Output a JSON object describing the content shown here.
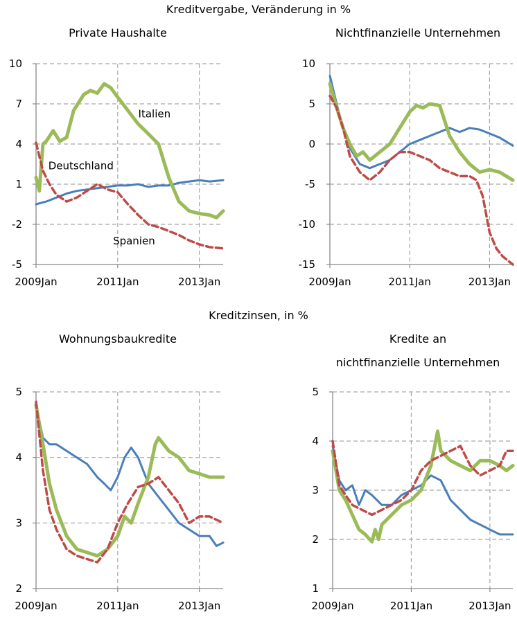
{
  "titles": {
    "top": "Kreditvergabe, Veränderung in %",
    "bottom": "Kreditzinsen, in %"
  },
  "colors": {
    "deutschland": "#4a7ebb",
    "italien": "#9bbb59",
    "spanien": "#be4b48",
    "grid": "#a6a6a6",
    "axis": "#888888"
  },
  "chart_data": [
    {
      "type": "line",
      "title": "Private Haushalte",
      "x_ticks": [
        "2009Jan",
        "2011Jan",
        "2013Jan"
      ],
      "x_range": [
        2009.0,
        2013.583
      ],
      "ylim": [
        -5,
        10
      ],
      "y_ticks": [
        10,
        7,
        4,
        1,
        -2,
        -5
      ],
      "grid": true,
      "annotations": [
        {
          "text": "Italien",
          "series": "Italien"
        },
        {
          "text": "Deutschland",
          "series": "Deutschland"
        },
        {
          "text": "Spanien",
          "series": "Spanien"
        }
      ],
      "series": [
        {
          "name": "Deutschland",
          "style": "solid",
          "x": [
            2009.0,
            2009.25,
            2009.5,
            2009.75,
            2010.0,
            2010.25,
            2010.5,
            2010.75,
            2011.0,
            2011.25,
            2011.5,
            2011.75,
            2012.0,
            2012.25,
            2012.5,
            2012.75,
            2013.0,
            2013.25,
            2013.583
          ],
          "y": [
            -0.5,
            -0.3,
            0.0,
            0.3,
            0.5,
            0.6,
            0.7,
            0.8,
            0.9,
            0.9,
            1.0,
            0.8,
            0.9,
            0.9,
            1.1,
            1.2,
            1.3,
            1.2,
            1.3
          ]
        },
        {
          "name": "Italien",
          "style": "solid",
          "x": [
            2009.0,
            2009.08,
            2009.17,
            2009.25,
            2009.42,
            2009.58,
            2009.75,
            2009.92,
            2010.17,
            2010.33,
            2010.5,
            2010.67,
            2010.83,
            2011.0,
            2011.25,
            2011.5,
            2011.67,
            2012.0,
            2012.25,
            2012.5,
            2012.75,
            2013.0,
            2013.25,
            2013.42,
            2013.583
          ],
          "y": [
            1.5,
            0.5,
            4.0,
            4.2,
            5.0,
            4.2,
            4.5,
            6.5,
            7.7,
            8.0,
            7.8,
            8.5,
            8.2,
            7.5,
            6.5,
            5.5,
            5.0,
            4.0,
            1.5,
            -0.3,
            -1.0,
            -1.2,
            -1.3,
            -1.5,
            -1.0
          ]
        },
        {
          "name": "Spanien",
          "style": "dashed",
          "x": [
            2009.0,
            2009.17,
            2009.33,
            2009.5,
            2009.75,
            2010.0,
            2010.25,
            2010.5,
            2010.75,
            2011.0,
            2011.25,
            2011.5,
            2011.75,
            2012.0,
            2012.25,
            2012.5,
            2012.75,
            2013.0,
            2013.25,
            2013.583
          ],
          "y": [
            4.1,
            2.0,
            1.0,
            0.2,
            -0.3,
            0.0,
            0.5,
            1.0,
            0.6,
            0.4,
            -0.5,
            -1.3,
            -2.0,
            -2.2,
            -2.5,
            -2.8,
            -3.2,
            -3.5,
            -3.7,
            -3.8
          ]
        }
      ]
    },
    {
      "type": "line",
      "title": "Nichtfinanzielle Unternehmen",
      "x_ticks": [
        "2009Jan",
        "2011Jan",
        "2013Jan"
      ],
      "x_range": [
        2009.0,
        2013.583
      ],
      "ylim": [
        -15,
        10
      ],
      "y_ticks": [
        10,
        5,
        0,
        -5,
        -10,
        -15
      ],
      "grid": true,
      "series": [
        {
          "name": "Deutschland",
          "style": "solid",
          "x": [
            2009.0,
            2009.17,
            2009.33,
            2009.5,
            2009.75,
            2010.0,
            2010.25,
            2010.5,
            2010.75,
            2011.0,
            2011.25,
            2011.5,
            2011.75,
            2012.0,
            2012.25,
            2012.5,
            2012.75,
            2013.0,
            2013.25,
            2013.583
          ],
          "y": [
            8.5,
            5.0,
            2.0,
            -0.5,
            -2.5,
            -3.0,
            -2.5,
            -2.0,
            -1.0,
            0.0,
            0.5,
            1.0,
            1.5,
            2.0,
            1.5,
            2.0,
            1.8,
            1.3,
            0.8,
            -0.2
          ]
        },
        {
          "name": "Italien",
          "style": "solid",
          "x": [
            2009.0,
            2009.17,
            2009.33,
            2009.5,
            2009.67,
            2009.83,
            2010.0,
            2010.25,
            2010.5,
            2010.75,
            2011.0,
            2011.17,
            2011.33,
            2011.5,
            2011.75,
            2012.0,
            2012.25,
            2012.5,
            2012.75,
            2013.0,
            2013.25,
            2013.583
          ],
          "y": [
            7.5,
            4.5,
            2.0,
            0.0,
            -1.5,
            -1.0,
            -2.0,
            -1.0,
            0.0,
            2.0,
            4.0,
            4.8,
            4.5,
            5.0,
            4.8,
            1.0,
            -1.0,
            -2.5,
            -3.5,
            -3.2,
            -3.5,
            -4.5
          ]
        },
        {
          "name": "Spanien",
          "style": "dashed",
          "x": [
            2009.0,
            2009.17,
            2009.33,
            2009.5,
            2009.75,
            2010.0,
            2010.25,
            2010.5,
            2010.75,
            2011.0,
            2011.25,
            2011.5,
            2011.75,
            2012.0,
            2012.25,
            2012.5,
            2012.67,
            2012.83,
            2013.0,
            2013.17,
            2013.33,
            2013.583
          ],
          "y": [
            6.0,
            4.5,
            2.0,
            -1.5,
            -3.5,
            -4.5,
            -3.5,
            -2.0,
            -1.0,
            -1.0,
            -1.5,
            -2.0,
            -3.0,
            -3.5,
            -4.0,
            -4.0,
            -4.5,
            -6.5,
            -11.0,
            -13.0,
            -14.0,
            -15.0
          ]
        }
      ]
    },
    {
      "type": "line",
      "title": "Wohnungsbaukredite",
      "x_ticks": [
        "2009Jan",
        "2011Jan",
        "2013Jan"
      ],
      "x_range": [
        2009.0,
        2013.583
      ],
      "ylim": [
        2,
        5
      ],
      "y_ticks": [
        5,
        4,
        3,
        2
      ],
      "grid": true,
      "series": [
        {
          "name": "Deutschland",
          "style": "solid",
          "x": [
            2009.0,
            2009.17,
            2009.33,
            2009.5,
            2009.75,
            2010.0,
            2010.25,
            2010.5,
            2010.67,
            2010.83,
            2011.0,
            2011.17,
            2011.33,
            2011.5,
            2011.75,
            2012.0,
            2012.25,
            2012.5,
            2012.75,
            2013.0,
            2013.25,
            2013.42,
            2013.583
          ],
          "y": [
            4.8,
            4.3,
            4.2,
            4.2,
            4.1,
            4.0,
            3.9,
            3.7,
            3.6,
            3.5,
            3.7,
            4.0,
            4.15,
            4.0,
            3.6,
            3.4,
            3.2,
            3.0,
            2.9,
            2.8,
            2.8,
            2.65,
            2.7
          ]
        },
        {
          "name": "Italien",
          "style": "solid",
          "x": [
            2009.0,
            2009.17,
            2009.33,
            2009.5,
            2009.75,
            2010.0,
            2010.25,
            2010.5,
            2010.75,
            2011.0,
            2011.17,
            2011.33,
            2011.5,
            2011.75,
            2011.92,
            2012.0,
            2012.25,
            2012.5,
            2012.75,
            2013.0,
            2013.25,
            2013.583
          ],
          "y": [
            4.8,
            4.2,
            3.6,
            3.2,
            2.8,
            2.6,
            2.55,
            2.5,
            2.6,
            2.8,
            3.1,
            3.0,
            3.3,
            3.7,
            4.2,
            4.3,
            4.1,
            4.0,
            3.8,
            3.75,
            3.7,
            3.7
          ]
        },
        {
          "name": "Spanien",
          "style": "dashed",
          "x": [
            2009.0,
            2009.17,
            2009.33,
            2009.5,
            2009.75,
            2010.0,
            2010.25,
            2010.5,
            2010.75,
            2011.0,
            2011.25,
            2011.5,
            2011.75,
            2012.0,
            2012.25,
            2012.5,
            2012.75,
            2013.0,
            2013.25,
            2013.583
          ],
          "y": [
            4.85,
            3.8,
            3.2,
            2.9,
            2.6,
            2.5,
            2.45,
            2.4,
            2.6,
            3.0,
            3.3,
            3.55,
            3.6,
            3.7,
            3.5,
            3.3,
            3.0,
            3.1,
            3.1,
            3.0
          ]
        }
      ]
    },
    {
      "type": "line",
      "title": "Kredite an nichtfinanzielle Unternehmen",
      "title_lines": [
        "Kredite an",
        "nichtfinanzielle Unternehmen"
      ],
      "x_ticks": [
        "2009Jan",
        "2011Jan",
        "2013Jan"
      ],
      "x_range": [
        2009.0,
        2013.583
      ],
      "ylim": [
        1,
        5
      ],
      "y_ticks": [
        5,
        4,
        3,
        2,
        1
      ],
      "grid": true,
      "series": [
        {
          "name": "Deutschland",
          "style": "solid",
          "x": [
            2009.0,
            2009.17,
            2009.33,
            2009.5,
            2009.67,
            2009.83,
            2010.0,
            2010.25,
            2010.5,
            2010.75,
            2011.0,
            2011.25,
            2011.5,
            2011.75,
            2012.0,
            2012.25,
            2012.5,
            2012.75,
            2013.0,
            2013.25,
            2013.583
          ],
          "y": [
            3.9,
            3.2,
            3.0,
            3.1,
            2.7,
            3.0,
            2.9,
            2.7,
            2.7,
            2.9,
            3.0,
            3.1,
            3.3,
            3.2,
            2.8,
            2.6,
            2.4,
            2.3,
            2.2,
            2.1,
            2.1
          ]
        },
        {
          "name": "Italien",
          "style": "solid",
          "x": [
            2009.0,
            2009.17,
            2009.33,
            2009.5,
            2009.67,
            2009.83,
            2010.0,
            2010.08,
            2010.17,
            2010.25,
            2010.5,
            2010.75,
            2011.0,
            2011.25,
            2011.5,
            2011.67,
            2011.75,
            2012.0,
            2012.25,
            2012.5,
            2012.75,
            2013.0,
            2013.25,
            2013.42,
            2013.583
          ],
          "y": [
            3.8,
            3.0,
            2.8,
            2.5,
            2.2,
            2.1,
            1.95,
            2.2,
            2.0,
            2.3,
            2.5,
            2.7,
            2.8,
            3.0,
            3.5,
            4.2,
            3.8,
            3.6,
            3.5,
            3.4,
            3.6,
            3.6,
            3.5,
            3.4,
            3.5
          ]
        },
        {
          "name": "Spanien",
          "style": "dashed",
          "x": [
            2009.0,
            2009.17,
            2009.33,
            2009.5,
            2009.75,
            2010.0,
            2010.25,
            2010.5,
            2010.75,
            2011.0,
            2011.25,
            2011.5,
            2011.75,
            2012.0,
            2012.25,
            2012.5,
            2012.75,
            2013.0,
            2013.25,
            2013.42,
            2013.583
          ],
          "y": [
            4.0,
            3.1,
            2.9,
            2.7,
            2.6,
            2.5,
            2.6,
            2.7,
            2.8,
            3.0,
            3.4,
            3.6,
            3.7,
            3.8,
            3.9,
            3.5,
            3.3,
            3.4,
            3.5,
            3.8,
            3.8
          ]
        }
      ]
    }
  ]
}
